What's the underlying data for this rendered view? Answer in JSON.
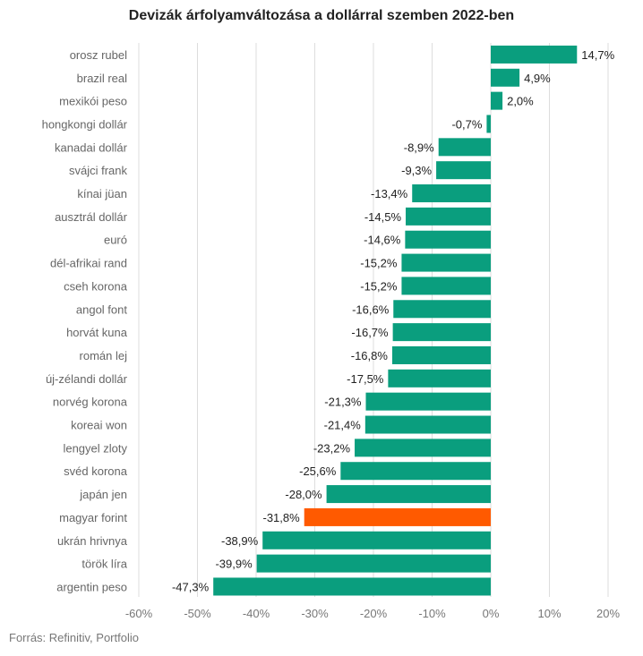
{
  "page": {
    "title": "Devizák árfolyamváltozása a dollárral szemben 2022-ben",
    "source": "Forrás: Refinitiv, Portfolio"
  },
  "colors": {
    "bar": "#0a9e7e",
    "highlight": "#ff5a00",
    "grid": "#dddddd",
    "label": "#666666",
    "value": "#222222"
  },
  "chart_data": {
    "type": "bar",
    "orientation": "horizontal",
    "title": "Devizák árfolyamváltozása a dollárral szemben 2022-ben",
    "xlabel": "",
    "ylabel": "",
    "xlim": [
      -60,
      20
    ],
    "xticks": [
      -60,
      -50,
      -40,
      -30,
      -20,
      -10,
      0,
      10,
      20
    ],
    "xtick_labels": [
      "-60%",
      "-50%",
      "-40%",
      "-30%",
      "-20%",
      "-10%",
      "0%",
      "10%",
      "20%"
    ],
    "grid": true,
    "highlight_category": "magyar forint",
    "categories": [
      "orosz rubel",
      "brazil real",
      "mexikói peso",
      "hongkongi dollár",
      "kanadai dollár",
      "svájci frank",
      "kínai jüan",
      "ausztrál dollár",
      "euró",
      "dél-afrikai rand",
      "cseh korona",
      "angol font",
      "horvát kuna",
      "román lej",
      "új-zélandi dollár",
      "norvég korona",
      "koreai won",
      "lengyel zloty",
      "svéd korona",
      "japán jen",
      "magyar forint",
      "ukrán hrivnya",
      "török líra",
      "argentin peso"
    ],
    "values": [
      14.7,
      4.9,
      2.0,
      -0.7,
      -8.9,
      -9.3,
      -13.4,
      -14.5,
      -14.6,
      -15.2,
      -15.2,
      -16.6,
      -16.7,
      -16.8,
      -17.5,
      -21.3,
      -21.4,
      -23.2,
      -25.6,
      -28.0,
      -31.8,
      -38.9,
      -39.9,
      -47.3
    ],
    "value_labels": [
      "14,7%",
      "4,9%",
      "2,0%",
      "-0,7%",
      "-8,9%",
      "-9,3%",
      "-13,4%",
      "-14,5%",
      "-14,6%",
      "-15,2%",
      "-15,2%",
      "-16,6%",
      "-16,7%",
      "-16,8%",
      "-17,5%",
      "-21,3%",
      "-21,4%",
      "-23,2%",
      "-25,6%",
      "-28,0%",
      "-31,8%",
      "-38,9%",
      "-39,9%",
      "-47,3%"
    ]
  }
}
